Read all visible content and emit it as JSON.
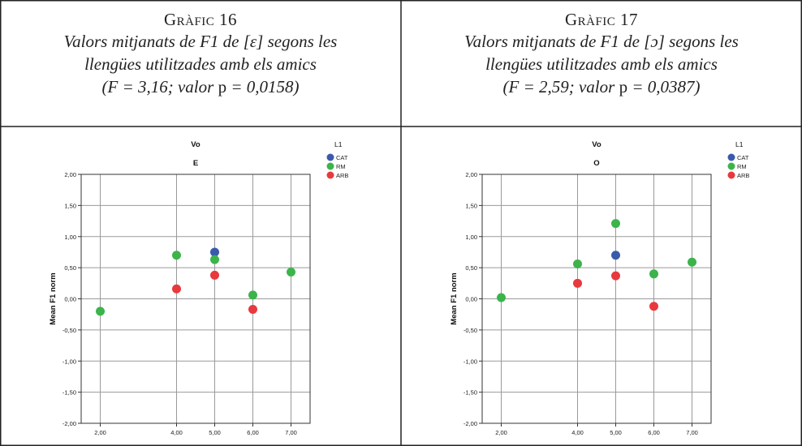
{
  "panels": [
    {
      "caption": {
        "heading": "Gràfic 16",
        "line1": "Valors mitjanats de F1 de [ɛ] segons les",
        "line2": "llengües utilitzades amb els amics",
        "stat_a": "(F = 3,16; valor ",
        "stat_p": "p",
        "stat_b": " = 0,0158)"
      }
    },
    {
      "caption": {
        "heading": "Gràfic 17",
        "line1": "Valors mitjanats de F1 de [ɔ] segons les",
        "line2": "llengües utilitzades amb els amics",
        "stat_a": "(F = 2,59; valor ",
        "stat_p": "p",
        "stat_b": " = 0,0387)"
      }
    }
  ],
  "chart_data": [
    {
      "type": "scatter",
      "title": "Vo",
      "subtitle": "E",
      "xlabel": "",
      "ylabel": "Mean F1 norm",
      "xlim": [
        1.5,
        7.5
      ],
      "ylim": [
        -2.0,
        2.0
      ],
      "x_ticks": [
        2,
        4,
        5,
        6,
        7
      ],
      "x_tick_labels": [
        "2,00",
        "4,00",
        "5,00",
        "6,00",
        "7,00"
      ],
      "y_ticks": [
        2.0,
        1.5,
        1.0,
        0.5,
        0.0,
        -0.5,
        -1.0,
        -1.5,
        -2.0
      ],
      "y_tick_labels": [
        "2,00",
        "1,50",
        "1,00",
        "0,50",
        "0,00",
        "-0,50",
        "-1,00",
        "-1,50",
        "-2,00"
      ],
      "grid": true,
      "legend": {
        "title": "L1",
        "position": "top-right"
      },
      "series": [
        {
          "name": "CAT",
          "color": "#3a5bab",
          "points": [
            [
              5,
              0.75
            ]
          ]
        },
        {
          "name": "RM",
          "color": "#3cb44b",
          "points": [
            [
              2,
              -0.2
            ],
            [
              4,
              0.7
            ],
            [
              5,
              0.63
            ],
            [
              6,
              0.06
            ],
            [
              7,
              0.43
            ]
          ]
        },
        {
          "name": "ARB",
          "color": "#e8393d",
          "points": [
            [
              4,
              0.16
            ],
            [
              5,
              0.38
            ],
            [
              6,
              -0.17
            ]
          ]
        }
      ]
    },
    {
      "type": "scatter",
      "title": "Vo",
      "subtitle": "O",
      "xlabel": "",
      "ylabel": "Mean F1 norm",
      "xlim": [
        1.5,
        7.5
      ],
      "ylim": [
        -2.0,
        2.0
      ],
      "x_ticks": [
        2,
        4,
        5,
        6,
        7
      ],
      "x_tick_labels": [
        "2,00",
        "4,00",
        "5,00",
        "6,00",
        "7,00"
      ],
      "y_ticks": [
        2.0,
        1.5,
        1.0,
        0.5,
        0.0,
        -0.5,
        -1.0,
        -1.5,
        -2.0
      ],
      "y_tick_labels": [
        "2,00",
        "1,50",
        "1,00",
        "0,50",
        "0,00",
        "-0,50",
        "-1,00",
        "-1,50",
        "-2,00"
      ],
      "grid": true,
      "legend": {
        "title": "L1",
        "position": "top-right"
      },
      "series": [
        {
          "name": "CAT",
          "color": "#3a5bab",
          "points": [
            [
              5,
              0.7
            ]
          ]
        },
        {
          "name": "RM",
          "color": "#3cb44b",
          "points": [
            [
              2,
              0.02
            ],
            [
              4,
              0.56
            ],
            [
              5,
              1.21
            ],
            [
              6,
              0.4
            ],
            [
              7,
              0.59
            ]
          ]
        },
        {
          "name": "ARB",
          "color": "#e8393d",
          "points": [
            [
              4,
              0.25
            ],
            [
              5,
              0.37
            ],
            [
              6,
              -0.12
            ]
          ]
        }
      ]
    }
  ]
}
